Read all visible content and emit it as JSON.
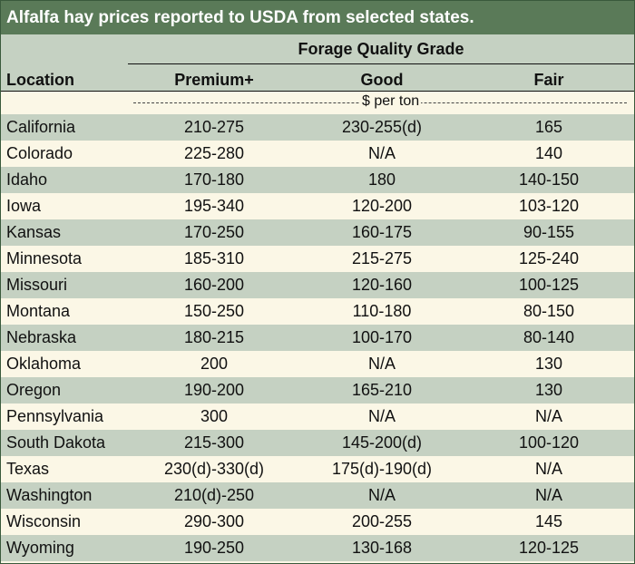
{
  "title": "Alfalfa hay prices reported to USDA from selected states.",
  "header": {
    "group_label": "Forage Quality Grade",
    "location_label": "Location",
    "columns": [
      "Premium+",
      "Good",
      "Fair"
    ]
  },
  "units_label": "$ per ton",
  "colors": {
    "title_bar": "#5a7a58",
    "band_green": "#c5d1c2",
    "band_cream": "#fbf7e6"
  },
  "rows": [
    {
      "location": "California",
      "premium": "210-275",
      "good": "230-255(d)",
      "fair": "165"
    },
    {
      "location": "Colorado",
      "premium": "225-280",
      "good": "N/A",
      "fair": "140"
    },
    {
      "location": "Idaho",
      "premium": "170-180",
      "good": "180",
      "fair": "140-150"
    },
    {
      "location": "Iowa",
      "premium": "195-340",
      "good": "120-200",
      "fair": "103-120"
    },
    {
      "location": "Kansas",
      "premium": "170-250",
      "good": "160-175",
      "fair": "90-155"
    },
    {
      "location": "Minnesota",
      "premium": "185-310",
      "good": "215-275",
      "fair": "125-240"
    },
    {
      "location": "Missouri",
      "premium": "160-200",
      "good": "120-160",
      "fair": "100-125"
    },
    {
      "location": "Montana",
      "premium": "150-250",
      "good": "110-180",
      "fair": "80-150"
    },
    {
      "location": "Nebraska",
      "premium": "180-215",
      "good": "100-170",
      "fair": "80-140"
    },
    {
      "location": "Oklahoma",
      "premium": "200",
      "good": "N/A",
      "fair": "130"
    },
    {
      "location": "Oregon",
      "premium": "190-200",
      "good": "165-210",
      "fair": "130"
    },
    {
      "location": "Pennsylvania",
      "premium": "300",
      "good": "N/A",
      "fair": "N/A"
    },
    {
      "location": "South Dakota",
      "premium": "215-300",
      "good": "145-200(d)",
      "fair": "100-120"
    },
    {
      "location": "Texas",
      "premium": "230(d)-330(d)",
      "good": "175(d)-190(d)",
      "fair": "N/A"
    },
    {
      "location": "Washington",
      "premium": "210(d)-250",
      "good": "N/A",
      "fair": "N/A"
    },
    {
      "location": "Wisconsin",
      "premium": "290-300",
      "good": "200-255",
      "fair": "145"
    },
    {
      "location": "Wyoming",
      "premium": "190-250",
      "good": "130-168",
      "fair": "120-125"
    }
  ]
}
